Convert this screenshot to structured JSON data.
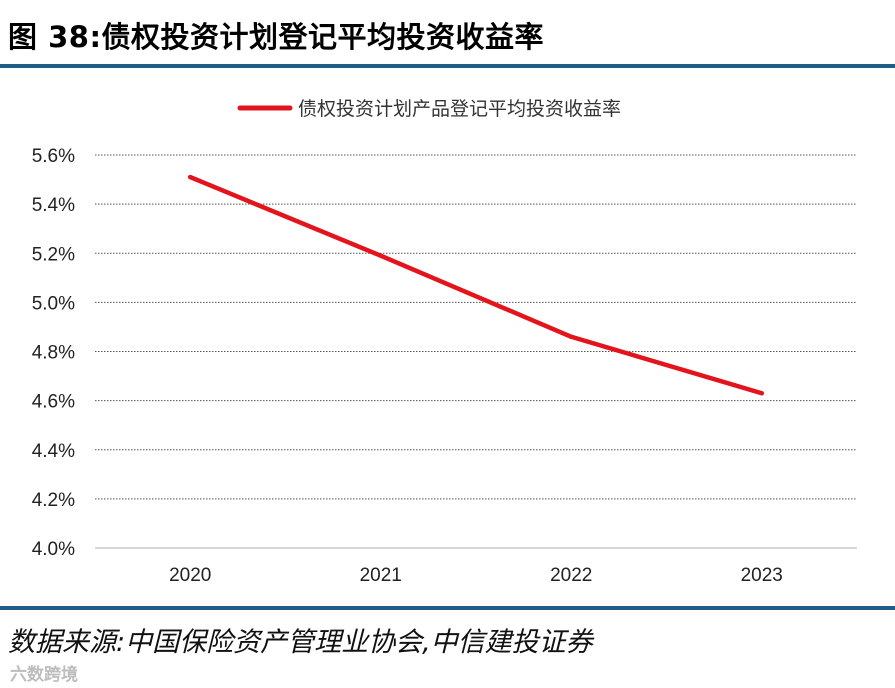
{
  "figure": {
    "title": "图 38:债权投资计划登记平均投资收益率",
    "source": "数据来源:中国保险资产管理业协会,中信建投证券",
    "watermark": "六数跨境"
  },
  "colors": {
    "line": "#e3141b",
    "rule": "#1f5d85",
    "grid": "#555555"
  },
  "chart_data": {
    "type": "line",
    "title": "",
    "xlabel": "",
    "ylabel": "",
    "categories": [
      "2020",
      "2021",
      "2022",
      "2023"
    ],
    "series": [
      {
        "name": "债权投资计划产品登记平均投资收益率",
        "values": [
          5.51,
          5.19,
          4.86,
          4.63
        ]
      }
    ],
    "ylim": [
      4.0,
      5.6
    ],
    "yticks": [
      5.6,
      5.4,
      5.2,
      5.0,
      4.8,
      4.6,
      4.4,
      4.2,
      4.0
    ],
    "ytick_labels": [
      "5.6%",
      "5.4%",
      "5.2%",
      "5.0%",
      "4.8%",
      "4.6%",
      "4.4%",
      "4.2%",
      "4.0%"
    ],
    "legend_position": "top-center",
    "grid": true
  }
}
